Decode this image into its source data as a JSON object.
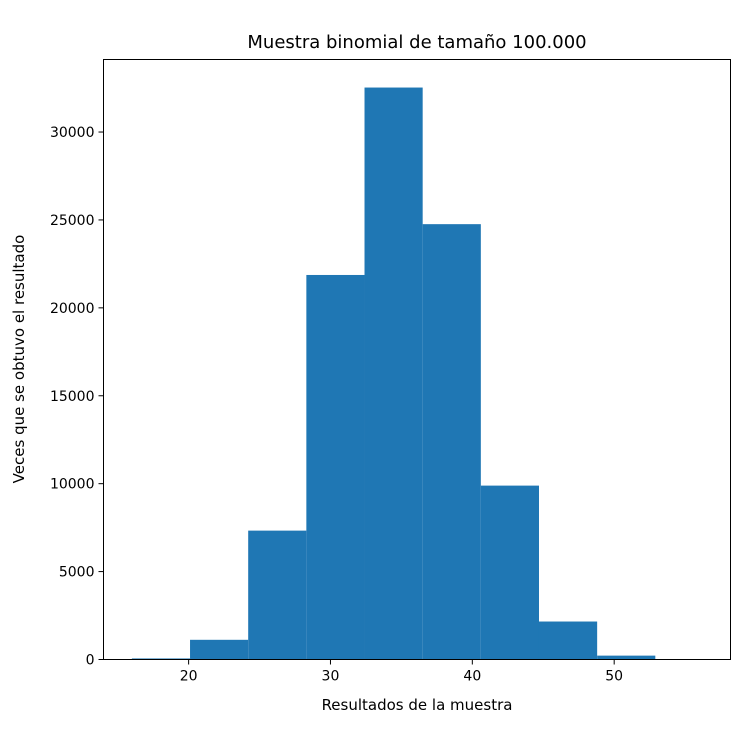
{
  "chart_data": {
    "type": "bar",
    "title": "Muestra binomial de tamaño 100.000",
    "xlabel": "Resultados de la muestra",
    "ylabel": "Veces que se obtuvo el resultado",
    "xlim": [
      14,
      58.2
    ],
    "ylim": [
      0,
      34125
    ],
    "xticks": [
      20,
      30,
      40,
      50
    ],
    "yticks": [
      0,
      5000,
      10000,
      15000,
      20000,
      25000,
      30000
    ],
    "bin_edges": [
      16,
      20.1,
      24.2,
      28.3,
      32.4,
      36.5,
      40.6,
      44.7,
      48.8,
      52.9,
      57.0
    ],
    "values": [
      60,
      1120,
      7330,
      21870,
      32530,
      24760,
      9890,
      2160,
      220,
      10
    ],
    "bar_color": "#1f77b4",
    "grid": false,
    "legend": "none"
  }
}
